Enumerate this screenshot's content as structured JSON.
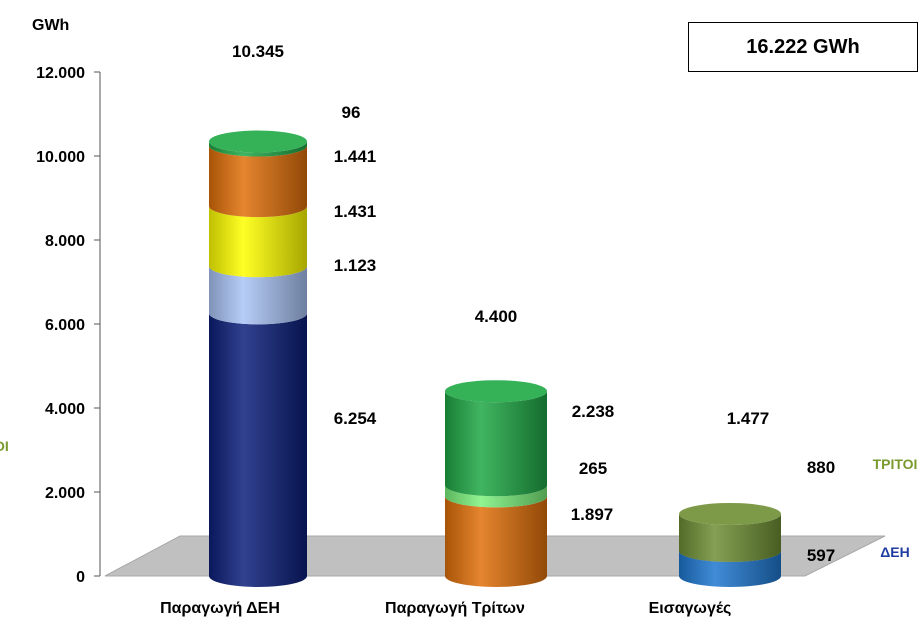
{
  "chart_data": {
    "type": "bar",
    "stacked": true,
    "style": "3d-cylinder",
    "ylabel": "GWh",
    "ylim": [
      0,
      12000
    ],
    "yticks": [
      "0",
      "2.000",
      "4.000",
      "6.000",
      "8.000",
      "10.000",
      "12.000"
    ],
    "ytick_values": [
      0,
      2000,
      4000,
      6000,
      8000,
      10000,
      12000
    ],
    "grid": false,
    "categories": [
      "Παραγωγή ΔΕΗ",
      "Παραγωγή Τρίτων",
      "Εισαγωγές"
    ],
    "grand_total": "16.222 GWh",
    "stacks": [
      {
        "category": "Παραγωγή ΔΕΗ",
        "total": 10345,
        "total_label": "10.345",
        "segments": [
          {
            "value": 6254,
            "label": "6.254",
            "color": "#0d1f7a"
          },
          {
            "value": 1123,
            "label": "1.123",
            "color": "#a9c4f5"
          },
          {
            "value": 1431,
            "label": "1.431",
            "color": "#ffff00"
          },
          {
            "value": 1441,
            "label": "1.441",
            "color": "#e0700a"
          },
          {
            "value": 96,
            "label": "96",
            "color": "#1fa845"
          }
        ]
      },
      {
        "category": "Παραγωγή Τρίτων",
        "total": 4400,
        "total_label": "4.400",
        "segments": [
          {
            "value": 1897,
            "label": "1.897",
            "color": "#e0700a"
          },
          {
            "value": 265,
            "label": "265",
            "color": "#7cf27c"
          },
          {
            "value": 2238,
            "label": "2.238",
            "color": "#1fa845"
          }
        ]
      },
      {
        "category": "Εισαγωγές",
        "total": 1477,
        "total_label": "1.477",
        "segments": [
          {
            "value": 597,
            "label": "597",
            "color": "#1f78d0",
            "series": "ΔΕΗ",
            "series_color": "#1f3ca0"
          },
          {
            "value": 880,
            "label": "880",
            "color": "#6e8f35",
            "series": "ΤΡΙΤΟΙ",
            "series_color": "#7a9a2e"
          }
        ]
      }
    ],
    "left_edge_label": "OI",
    "left_edge_color": "#7a9a2e",
    "floor_color": "#c0c0c0",
    "text_color": "#000000"
  }
}
